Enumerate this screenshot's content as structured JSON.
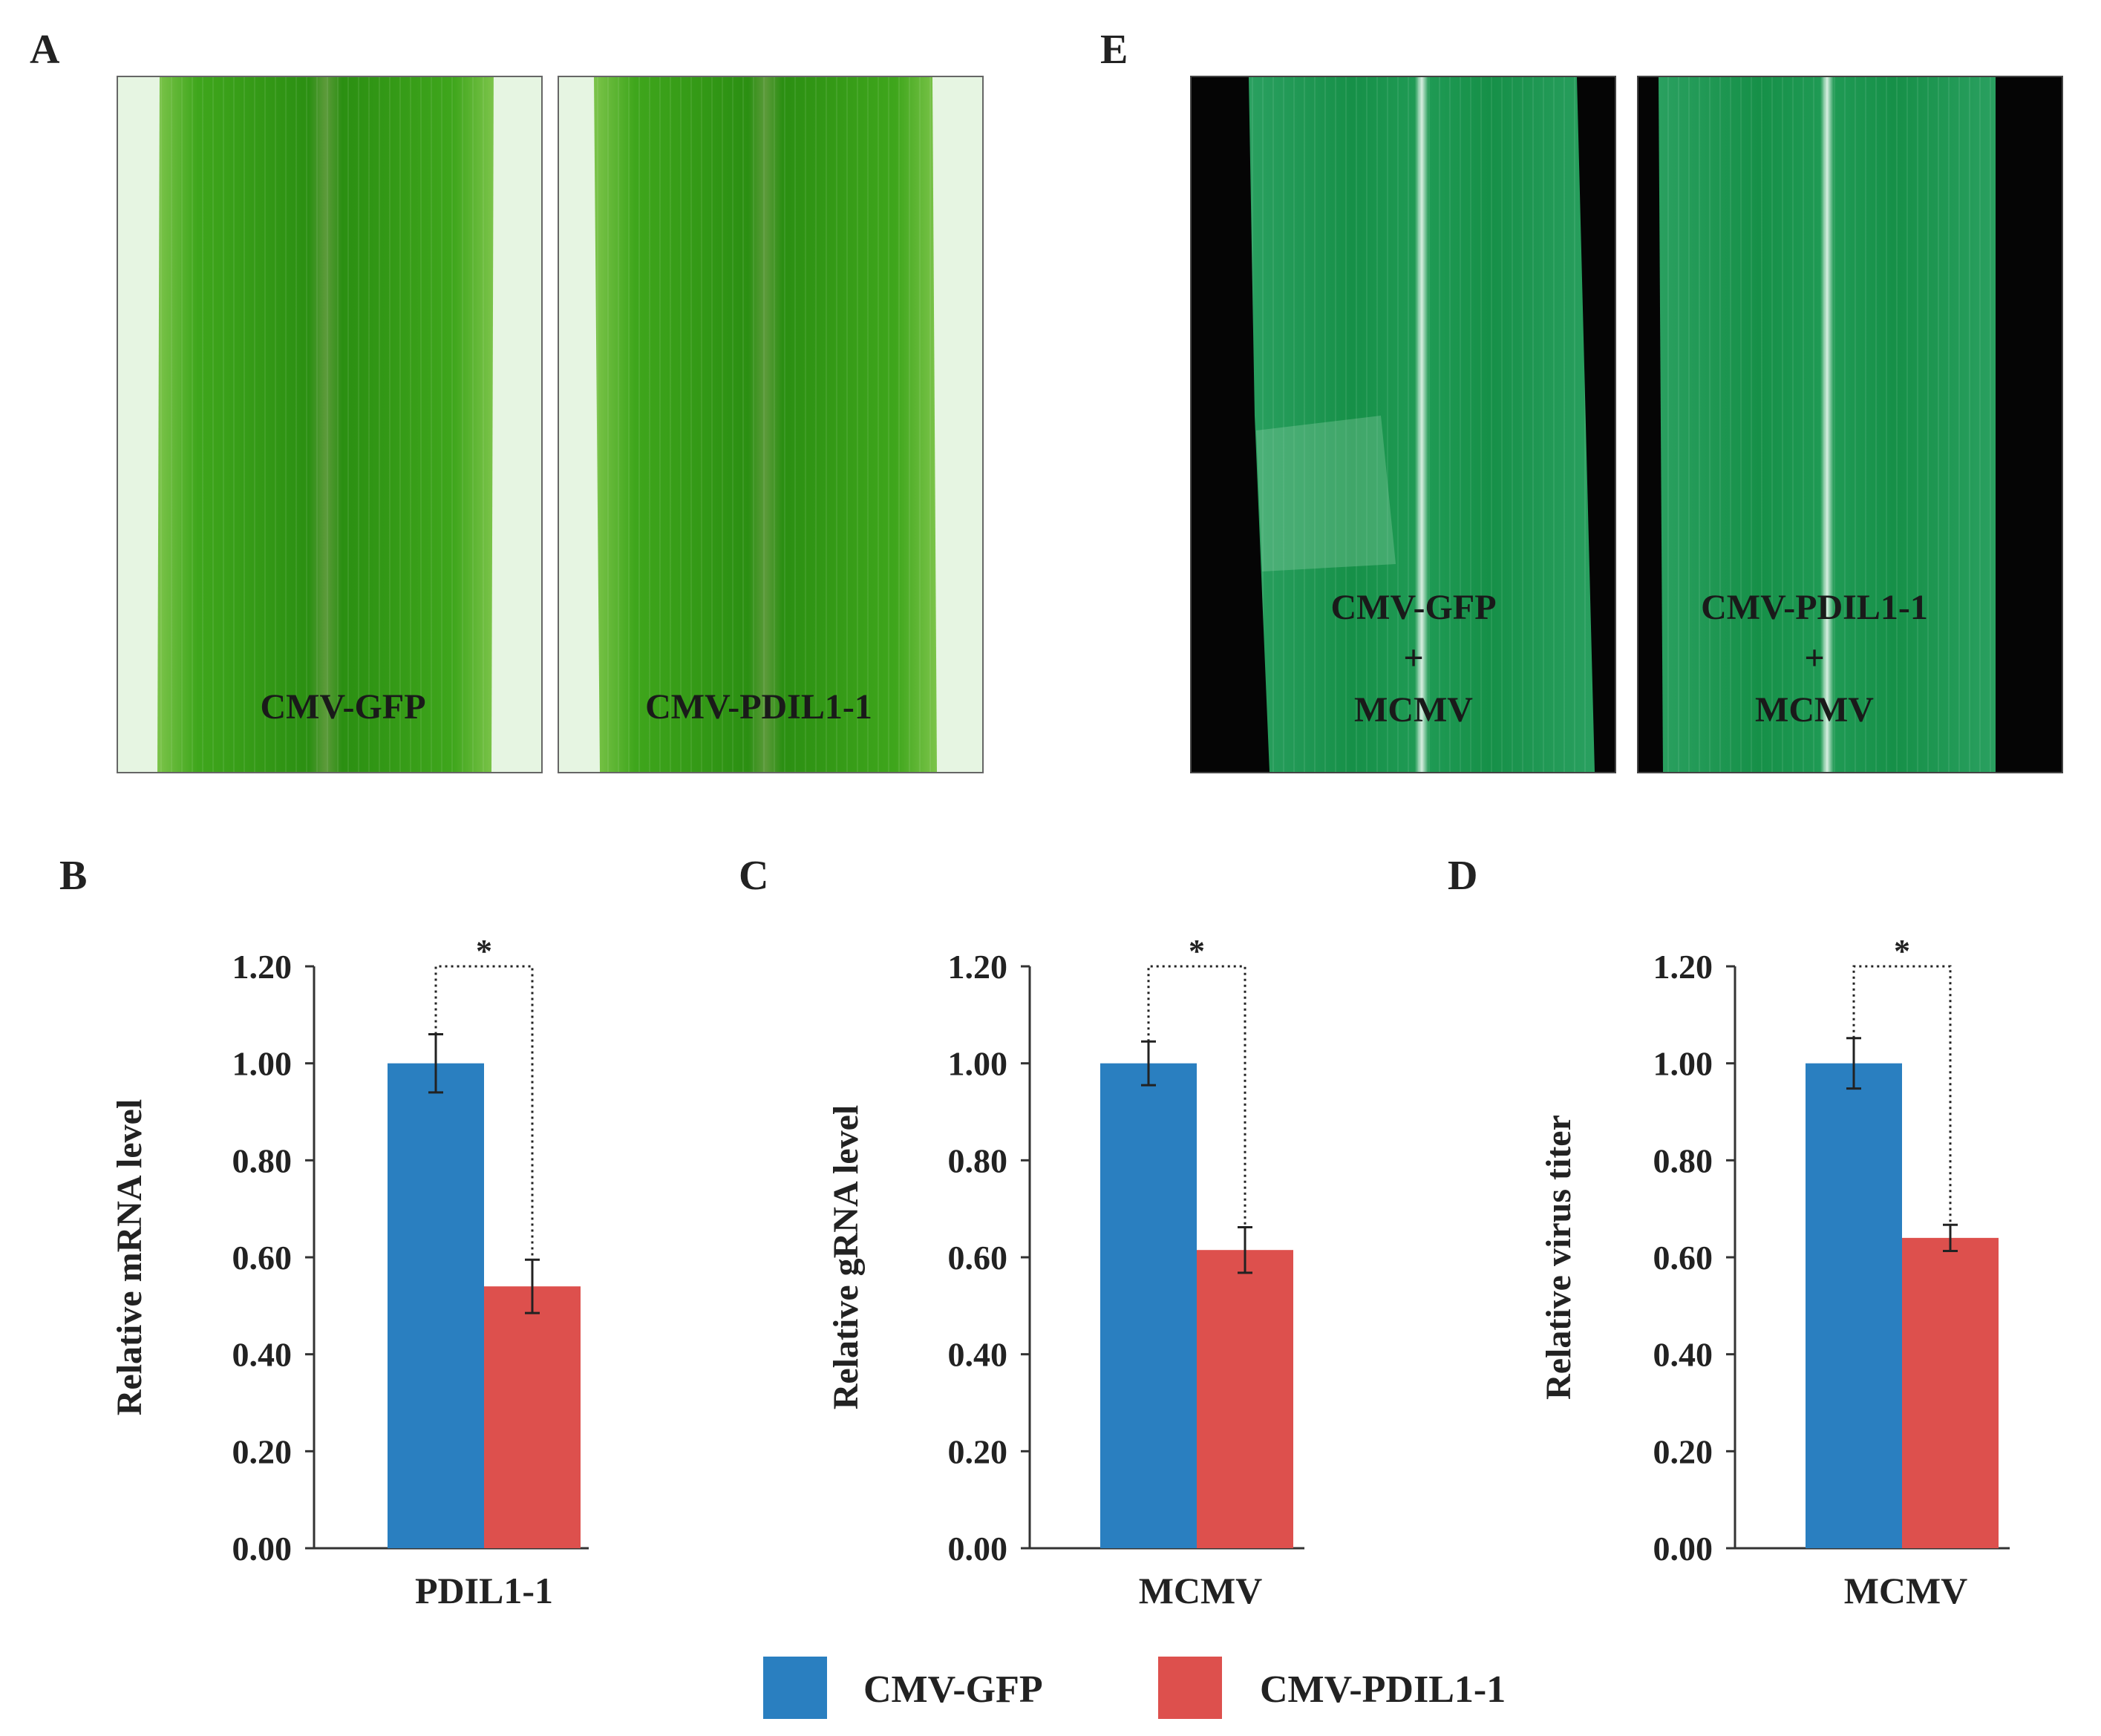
{
  "panels": {
    "A": {
      "label": "A",
      "images": [
        {
          "label": "CMV-GFP"
        },
        {
          "label": "CMV-PDIL1-1"
        }
      ]
    },
    "E": {
      "label": "E",
      "images": [
        {
          "line1": "CMV-GFP",
          "line2": "+",
          "line3": "MCMV"
        },
        {
          "line1": "CMV-PDIL1-1",
          "line2": "+",
          "line3": "MCMV"
        }
      ]
    }
  },
  "legend": {
    "items": [
      {
        "label": "CMV-GFP",
        "color": "#2a7fc0"
      },
      {
        "label": "CMV-PDIL1-1",
        "color": "#dd504d"
      }
    ]
  },
  "colors": {
    "series1": "#2a7fc0",
    "series2": "#dd504d",
    "leaf_light": "#4fb82a",
    "leaf_dark": "#1f8a10",
    "leaf2_light": "#3aa85a",
    "leaf2_dark": "#138a3e"
  },
  "chart_data": [
    {
      "panel": "B",
      "type": "bar",
      "categories": [
        "PDIL1-1"
      ],
      "series": [
        {
          "name": "CMV-GFP",
          "values": [
            1.0
          ],
          "error": [
            0.06
          ]
        },
        {
          "name": "CMV-PDIL1-1",
          "values": [
            0.54
          ],
          "error": [
            0.055
          ]
        }
      ],
      "ylabel": "Relative mRNA level",
      "ylim": [
        0,
        1.2
      ],
      "yticks": [
        "0.00",
        "0.20",
        "0.40",
        "0.60",
        "0.80",
        "1.00",
        "1.20"
      ],
      "significance": "*"
    },
    {
      "panel": "C",
      "type": "bar",
      "categories": [
        "MCMV"
      ],
      "series": [
        {
          "name": "CMV-GFP",
          "values": [
            1.0
          ],
          "error": [
            0.045
          ]
        },
        {
          "name": "CMV-PDIL1-1",
          "values": [
            0.615
          ],
          "error": [
            0.047
          ]
        }
      ],
      "ylabel": "Relative gRNA level",
      "ylim": [
        0,
        1.2
      ],
      "yticks": [
        "0.00",
        "0.20",
        "0.40",
        "0.60",
        "0.80",
        "1.00",
        "1.20"
      ],
      "significance": "*"
    },
    {
      "panel": "D",
      "type": "bar",
      "categories": [
        "MCMV"
      ],
      "series": [
        {
          "name": "CMV-GFP",
          "values": [
            1.0
          ],
          "error": [
            0.052
          ]
        },
        {
          "name": "CMV-PDIL1-1",
          "values": [
            0.64
          ],
          "error": [
            0.027
          ]
        }
      ],
      "ylabel": "Relative virus titer",
      "ylim": [
        0,
        1.2
      ],
      "yticks": [
        "0.00",
        "0.20",
        "0.40",
        "0.60",
        "0.80",
        "1.00",
        "1.20"
      ],
      "significance": "*"
    }
  ]
}
